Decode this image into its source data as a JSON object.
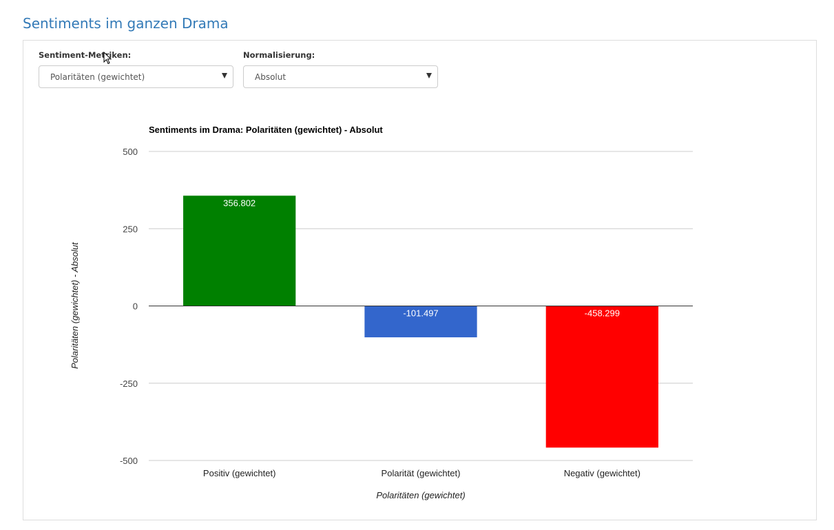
{
  "page": {
    "heading": "Sentiments im ganzen Drama"
  },
  "controls": {
    "metric": {
      "label": "Sentiment-Metriken:",
      "selected": "Polaritäten (gewichtet)"
    },
    "normalization": {
      "label": "Normalisierung:",
      "selected": "Absolut"
    }
  },
  "colors": {
    "heading": "#337ab7",
    "positive": "#008000",
    "polarity": "#3366cc",
    "negative": "#ff0000"
  },
  "chart_data": {
    "type": "bar",
    "title": "Sentiments im Drama: Polaritäten (gewichtet) - Absolut",
    "xlabel": "Polaritäten (gewichtet)",
    "ylabel": "Polaritäten (gewichtet) - Absolut",
    "categories": [
      "Positiv (gewichtet)",
      "Polarität (gewichtet)",
      "Negativ (gewichtet)"
    ],
    "values": [
      356.802,
      -101.497,
      -458.299
    ],
    "value_labels": [
      "356.802",
      "-101.497",
      "-458.299"
    ],
    "bar_colors": [
      "#008000",
      "#3366cc",
      "#ff0000"
    ],
    "ylim": [
      -500,
      500
    ],
    "yticks": [
      500,
      250,
      0,
      -250,
      -500
    ],
    "ytick_labels": [
      "500",
      "250",
      "0",
      "-250",
      "-500"
    ],
    "grid": true,
    "legend": "none"
  }
}
